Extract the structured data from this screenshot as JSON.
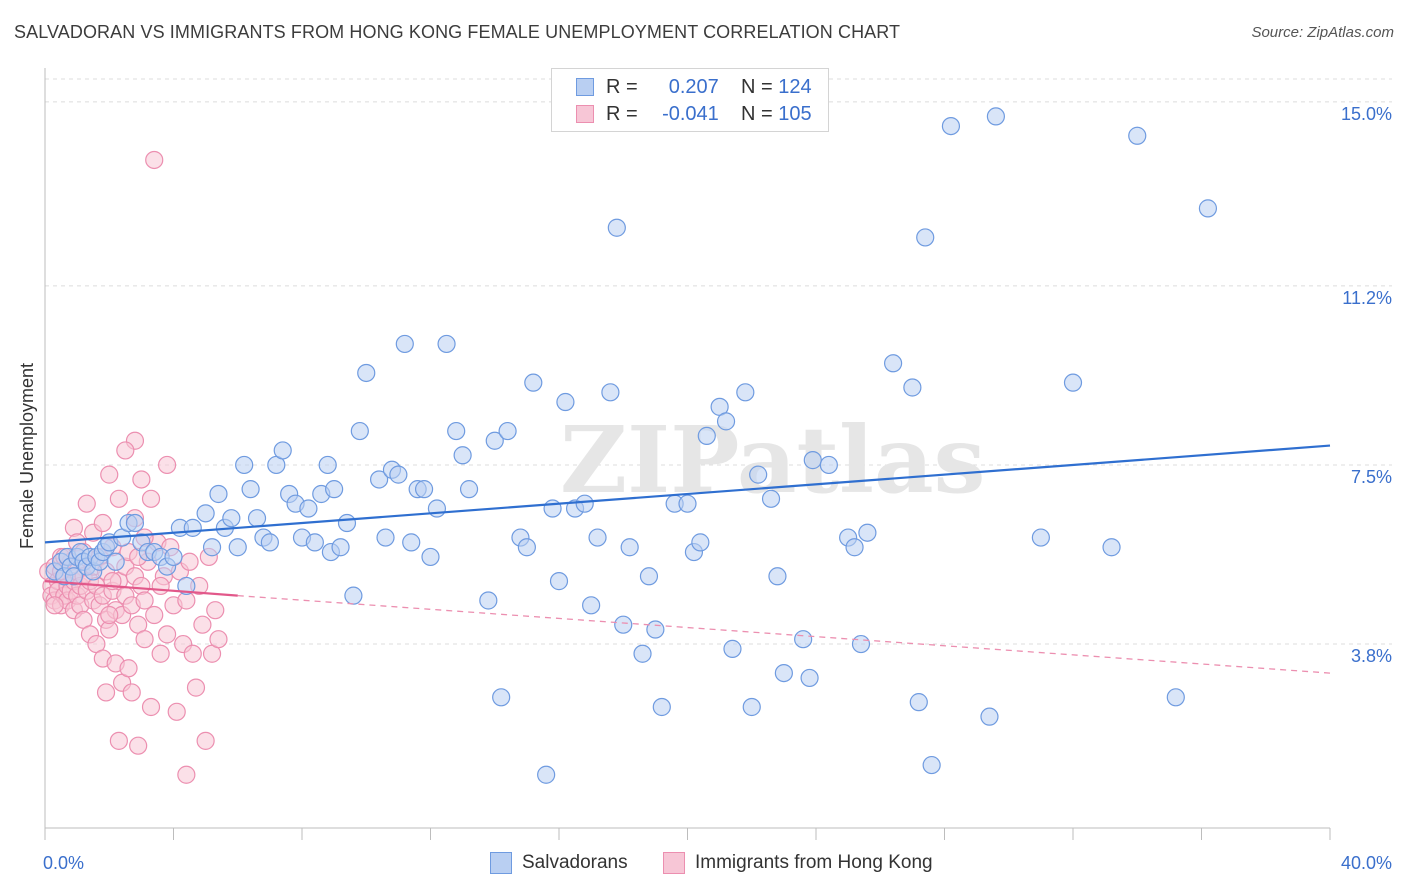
{
  "chart_data": {
    "type": "scatter",
    "title": "SALVADORAN VS IMMIGRANTS FROM HONG KONG FEMALE UNEMPLOYMENT CORRELATION CHART",
    "source": "Source: ZipAtlas.com",
    "watermark": "ZIPatlas",
    "xlabel": "",
    "ylabel": "Female Unemployment",
    "x_unit": "%",
    "xlim": [
      0,
      40
    ],
    "ylim": [
      0,
      15.7
    ],
    "x_tick_labels": [
      "0.0%",
      "40.0%"
    ],
    "y_ticks": [
      3.8,
      7.5,
      11.2,
      15.0
    ],
    "y_tick_labels": [
      "3.8%",
      "7.5%",
      "11.2%",
      "15.0%"
    ],
    "grid": true,
    "legend": {
      "position": "top-center",
      "entries": [
        {
          "r_label": "R =",
          "r_value": "0.207",
          "n_label": "N =",
          "n_value": "124"
        },
        {
          "r_label": "R =",
          "r_value": "-0.041",
          "n_label": "N =",
          "n_value": "105"
        }
      ]
    },
    "series": [
      {
        "name": "Salvadorans",
        "color": "#6f9be0",
        "fill": "#b9cff2",
        "trend": {
          "x": [
            0,
            40
          ],
          "y": [
            5.9,
            7.9
          ],
          "style": "solid"
        },
        "points": [
          [
            0.3,
            5.3
          ],
          [
            0.5,
            5.5
          ],
          [
            0.6,
            5.2
          ],
          [
            0.7,
            5.6
          ],
          [
            0.8,
            5.4
          ],
          [
            0.9,
            5.2
          ],
          [
            1.0,
            5.6
          ],
          [
            1.1,
            5.7
          ],
          [
            1.2,
            5.5
          ],
          [
            1.3,
            5.4
          ],
          [
            1.4,
            5.6
          ],
          [
            1.5,
            5.3
          ],
          [
            1.6,
            5.6
          ],
          [
            1.7,
            5.5
          ],
          [
            1.8,
            5.7
          ],
          [
            1.9,
            5.8
          ],
          [
            2.0,
            5.9
          ],
          [
            2.2,
            5.5
          ],
          [
            2.4,
            6.0
          ],
          [
            2.6,
            6.3
          ],
          [
            2.8,
            6.3
          ],
          [
            3.0,
            5.9
          ],
          [
            3.2,
            5.7
          ],
          [
            3.4,
            5.7
          ],
          [
            3.6,
            5.6
          ],
          [
            3.8,
            5.4
          ],
          [
            4.0,
            5.6
          ],
          [
            4.2,
            6.2
          ],
          [
            4.4,
            5.0
          ],
          [
            4.6,
            6.2
          ],
          [
            5.0,
            6.5
          ],
          [
            5.2,
            5.8
          ],
          [
            5.4,
            6.9
          ],
          [
            5.6,
            6.2
          ],
          [
            5.8,
            6.4
          ],
          [
            6.0,
            5.8
          ],
          [
            6.2,
            7.5
          ],
          [
            6.4,
            7.0
          ],
          [
            6.6,
            6.4
          ],
          [
            6.8,
            6.0
          ],
          [
            7.0,
            5.9
          ],
          [
            7.2,
            7.5
          ],
          [
            7.4,
            7.8
          ],
          [
            7.6,
            6.9
          ],
          [
            7.8,
            6.7
          ],
          [
            8.0,
            6.0
          ],
          [
            8.2,
            6.6
          ],
          [
            8.4,
            5.9
          ],
          [
            8.6,
            6.9
          ],
          [
            8.8,
            7.5
          ],
          [
            8.9,
            5.7
          ],
          [
            9.0,
            7.0
          ],
          [
            9.2,
            5.8
          ],
          [
            9.4,
            6.3
          ],
          [
            9.6,
            4.8
          ],
          [
            9.8,
            8.2
          ],
          [
            10.0,
            9.4
          ],
          [
            10.4,
            7.2
          ],
          [
            10.6,
            6.0
          ],
          [
            10.8,
            7.4
          ],
          [
            11.0,
            7.3
          ],
          [
            11.2,
            10.0
          ],
          [
            11.4,
            5.9
          ],
          [
            11.6,
            7.0
          ],
          [
            11.8,
            7.0
          ],
          [
            12.0,
            5.6
          ],
          [
            12.2,
            6.6
          ],
          [
            12.5,
            10.0
          ],
          [
            12.8,
            8.2
          ],
          [
            13.0,
            7.7
          ],
          [
            13.2,
            7.0
          ],
          [
            13.8,
            4.7
          ],
          [
            14.0,
            8.0
          ],
          [
            14.2,
            2.7
          ],
          [
            14.4,
            8.2
          ],
          [
            14.8,
            6.0
          ],
          [
            15.0,
            5.8
          ],
          [
            15.2,
            9.2
          ],
          [
            15.6,
            1.1
          ],
          [
            15.8,
            6.6
          ],
          [
            16.0,
            5.1
          ],
          [
            16.2,
            8.8
          ],
          [
            16.5,
            6.6
          ],
          [
            16.8,
            6.7
          ],
          [
            17.0,
            4.6
          ],
          [
            17.2,
            6.0
          ],
          [
            17.6,
            9.0
          ],
          [
            17.8,
            12.4
          ],
          [
            18.0,
            4.2
          ],
          [
            18.2,
            5.8
          ],
          [
            18.6,
            3.6
          ],
          [
            18.8,
            5.2
          ],
          [
            19.0,
            4.1
          ],
          [
            19.2,
            2.5
          ],
          [
            19.6,
            6.7
          ],
          [
            20.0,
            6.7
          ],
          [
            20.2,
            5.7
          ],
          [
            20.4,
            5.9
          ],
          [
            20.6,
            8.1
          ],
          [
            21.0,
            8.7
          ],
          [
            21.2,
            8.4
          ],
          [
            21.4,
            3.7
          ],
          [
            21.8,
            9.0
          ],
          [
            22.0,
            2.5
          ],
          [
            22.2,
            7.3
          ],
          [
            22.6,
            6.8
          ],
          [
            22.8,
            5.2
          ],
          [
            23.0,
            3.2
          ],
          [
            23.6,
            3.9
          ],
          [
            23.8,
            3.1
          ],
          [
            23.9,
            7.6
          ],
          [
            24.4,
            7.5
          ],
          [
            25.0,
            6.0
          ],
          [
            25.2,
            5.8
          ],
          [
            25.4,
            3.8
          ],
          [
            25.6,
            6.1
          ],
          [
            26.4,
            9.6
          ],
          [
            27.0,
            9.1
          ],
          [
            27.2,
            2.6
          ],
          [
            27.4,
            12.2
          ],
          [
            27.6,
            1.3
          ],
          [
            28.2,
            14.5
          ],
          [
            29.4,
            2.3
          ],
          [
            29.6,
            14.7
          ],
          [
            31.0,
            6.0
          ],
          [
            32.0,
            9.2
          ],
          [
            33.2,
            5.8
          ],
          [
            34.0,
            14.3
          ],
          [
            35.2,
            2.7
          ],
          [
            36.2,
            12.8
          ]
        ]
      },
      {
        "name": "Immigrants from Hong Kong",
        "color": "#ec8fb0",
        "fill": "#f7c6d6",
        "trend": {
          "x": [
            0,
            6
          ],
          "y": [
            5.1,
            4.8
          ],
          "style": "solid",
          "extended": {
            "x": [
              6,
              40
            ],
            "y": [
              4.8,
              3.2
            ],
            "style": "dashed"
          }
        },
        "points": [
          [
            0.1,
            5.3
          ],
          [
            0.2,
            5.0
          ],
          [
            0.2,
            4.8
          ],
          [
            0.3,
            5.4
          ],
          [
            0.3,
            4.7
          ],
          [
            0.4,
            5.1
          ],
          [
            0.4,
            4.9
          ],
          [
            0.5,
            5.6
          ],
          [
            0.5,
            4.6
          ],
          [
            0.6,
            5.2
          ],
          [
            0.6,
            4.8
          ],
          [
            0.7,
            5.0
          ],
          [
            0.7,
            4.7
          ],
          [
            0.8,
            5.5
          ],
          [
            0.8,
            4.9
          ],
          [
            0.9,
            5.1
          ],
          [
            0.9,
            4.5
          ],
          [
            1.0,
            5.3
          ],
          [
            1.0,
            4.8
          ],
          [
            1.1,
            5.0
          ],
          [
            1.1,
            4.6
          ],
          [
            1.2,
            5.2
          ],
          [
            1.2,
            4.3
          ],
          [
            1.3,
            4.9
          ],
          [
            1.3,
            6.7
          ],
          [
            1.4,
            5.1
          ],
          [
            1.4,
            4.0
          ],
          [
            1.5,
            4.7
          ],
          [
            1.5,
            5.4
          ],
          [
            1.6,
            5.0
          ],
          [
            1.6,
            3.8
          ],
          [
            1.7,
            4.6
          ],
          [
            1.7,
            5.6
          ],
          [
            1.8,
            4.8
          ],
          [
            1.8,
            3.5
          ],
          [
            1.9,
            5.3
          ],
          [
            1.9,
            4.3
          ],
          [
            2.0,
            4.1
          ],
          [
            2.0,
            7.3
          ],
          [
            2.1,
            4.9
          ],
          [
            2.1,
            5.8
          ],
          [
            2.2,
            4.5
          ],
          [
            2.2,
            3.4
          ],
          [
            2.3,
            5.1
          ],
          [
            2.3,
            6.8
          ],
          [
            2.4,
            4.4
          ],
          [
            2.4,
            3.0
          ],
          [
            2.5,
            5.4
          ],
          [
            2.5,
            4.8
          ],
          [
            2.6,
            3.3
          ],
          [
            2.6,
            5.7
          ],
          [
            2.7,
            4.6
          ],
          [
            2.7,
            2.8
          ],
          [
            2.8,
            5.2
          ],
          [
            2.8,
            6.4
          ],
          [
            2.9,
            4.2
          ],
          [
            2.9,
            1.7
          ],
          [
            3.0,
            5.0
          ],
          [
            3.0,
            7.2
          ],
          [
            3.1,
            4.7
          ],
          [
            3.1,
            3.9
          ],
          [
            3.2,
            5.5
          ],
          [
            3.3,
            2.5
          ],
          [
            3.3,
            6.8
          ],
          [
            3.4,
            4.4
          ],
          [
            3.5,
            5.9
          ],
          [
            3.6,
            3.6
          ],
          [
            3.7,
            5.2
          ],
          [
            3.8,
            4.0
          ],
          [
            3.9,
            5.8
          ],
          [
            4.0,
            4.6
          ],
          [
            4.1,
            2.4
          ],
          [
            4.2,
            5.3
          ],
          [
            4.3,
            3.8
          ],
          [
            4.4,
            4.7
          ],
          [
            4.5,
            5.5
          ],
          [
            4.6,
            3.6
          ],
          [
            4.7,
            2.9
          ],
          [
            4.8,
            5.0
          ],
          [
            4.9,
            4.2
          ],
          [
            5.0,
            1.8
          ],
          [
            5.1,
            5.6
          ],
          [
            5.2,
            3.6
          ],
          [
            5.3,
            4.5
          ],
          [
            5.4,
            3.9
          ],
          [
            3.4,
            13.8
          ],
          [
            2.8,
            8.0
          ],
          [
            2.5,
            7.8
          ],
          [
            3.8,
            7.5
          ],
          [
            2.1,
            5.1
          ],
          [
            1.5,
            6.1
          ],
          [
            0.9,
            6.2
          ],
          [
            1.0,
            5.9
          ],
          [
            0.6,
            5.6
          ],
          [
            1.8,
            6.3
          ],
          [
            3.1,
            6.0
          ],
          [
            2.3,
            1.8
          ],
          [
            1.9,
            2.8
          ],
          [
            4.4,
            1.1
          ],
          [
            3.6,
            5.0
          ],
          [
            0.3,
            4.6
          ],
          [
            0.5,
            5.3
          ],
          [
            1.2,
            5.7
          ],
          [
            2.0,
            4.4
          ],
          [
            2.9,
            5.6
          ]
        ]
      }
    ]
  },
  "legend_bottom": [
    {
      "label": "Salvadorans"
    },
    {
      "label": "Immigrants from Hong Kong"
    }
  ]
}
